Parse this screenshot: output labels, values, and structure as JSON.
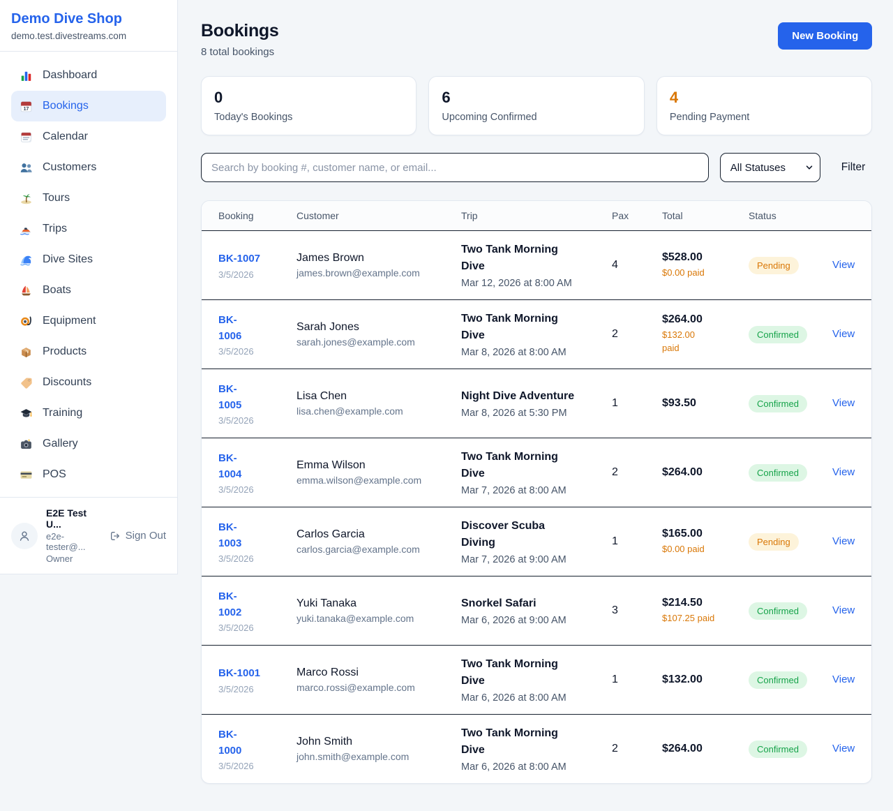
{
  "sidebar": {
    "brand": {
      "name": "Demo Dive Shop",
      "domain": "demo.test.divestreams.com"
    },
    "items": [
      {
        "label": "Dashboard",
        "icon": "dashboard",
        "active": false
      },
      {
        "label": "Bookings",
        "icon": "bookings",
        "active": true
      },
      {
        "label": "Calendar",
        "icon": "calendar",
        "active": false
      },
      {
        "label": "Customers",
        "icon": "customers",
        "active": false
      },
      {
        "label": "Tours",
        "icon": "tours",
        "active": false
      },
      {
        "label": "Trips",
        "icon": "trips",
        "active": false
      },
      {
        "label": "Dive Sites",
        "icon": "dive-sites",
        "active": false
      },
      {
        "label": "Boats",
        "icon": "boats",
        "active": false
      },
      {
        "label": "Equipment",
        "icon": "equipment",
        "active": false
      },
      {
        "label": "Products",
        "icon": "products",
        "active": false
      },
      {
        "label": "Discounts",
        "icon": "discounts",
        "active": false
      },
      {
        "label": "Training",
        "icon": "training",
        "active": false
      },
      {
        "label": "Gallery",
        "icon": "gallery",
        "active": false
      },
      {
        "label": "POS",
        "icon": "pos",
        "active": false
      }
    ],
    "user": {
      "name": "E2E Test U...",
      "email": "e2e-tester@...",
      "role": "Owner",
      "sign_out_label": "Sign Out"
    }
  },
  "header": {
    "title": "Bookings",
    "subtitle": "8 total bookings",
    "new_booking_label": "New Booking"
  },
  "stats": [
    {
      "value": "0",
      "label": "Today's Bookings",
      "color": "#0f172a"
    },
    {
      "value": "6",
      "label": "Upcoming Confirmed",
      "color": "#0f172a"
    },
    {
      "value": "4",
      "label": "Pending Payment",
      "color": "#d97706"
    }
  ],
  "filters": {
    "search_placeholder": "Search by booking #, customer name, or email...",
    "status_selected": "All Statuses",
    "filter_label": "Filter"
  },
  "table": {
    "columns": [
      "Booking",
      "Customer",
      "Trip",
      "Pax",
      "Total",
      "Status"
    ],
    "view_label": "View",
    "rows": [
      {
        "id": "BK-1007",
        "date": "3/5/2026",
        "customer": "James Brown",
        "email": "james.brown@example.com",
        "trip": "Two Tank Morning\nDive",
        "trip_time": "Mar 12, 2026 at 8:00 AM",
        "pax": "4",
        "total": "$528.00",
        "paid": "$0.00 paid",
        "status": "Pending"
      },
      {
        "id": "BK-\n1006",
        "date": "3/5/2026",
        "customer": "Sarah Jones",
        "email": "sarah.jones@example.com",
        "trip": "Two Tank Morning\nDive",
        "trip_time": "Mar 8, 2026 at 8:00 AM",
        "pax": "2",
        "total": "$264.00",
        "paid": "$132.00\npaid",
        "status": "Confirmed"
      },
      {
        "id": "BK-\n1005",
        "date": "3/5/2026",
        "customer": "Lisa Chen",
        "email": "lisa.chen@example.com",
        "trip": "Night Dive Adventure",
        "trip_time": "Mar 8, 2026 at 5:30 PM",
        "pax": "1",
        "total": "$93.50",
        "paid": null,
        "status": "Confirmed"
      },
      {
        "id": "BK-\n1004",
        "date": "3/5/2026",
        "customer": "Emma Wilson",
        "email": "emma.wilson@example.com",
        "trip": "Two Tank Morning\nDive",
        "trip_time": "Mar 7, 2026 at 8:00 AM",
        "pax": "2",
        "total": "$264.00",
        "paid": null,
        "status": "Confirmed"
      },
      {
        "id": "BK-\n1003",
        "date": "3/5/2026",
        "customer": "Carlos Garcia",
        "email": "carlos.garcia@example.com",
        "trip": "Discover Scuba\nDiving",
        "trip_time": "Mar 7, 2026 at 9:00 AM",
        "pax": "1",
        "total": "$165.00",
        "paid": "$0.00 paid",
        "status": "Pending"
      },
      {
        "id": "BK-\n1002",
        "date": "3/5/2026",
        "customer": "Yuki Tanaka",
        "email": "yuki.tanaka@example.com",
        "trip": "Snorkel Safari",
        "trip_time": "Mar 6, 2026 at 9:00 AM",
        "pax": "3",
        "total": "$214.50",
        "paid": "$107.25 paid",
        "status": "Confirmed"
      },
      {
        "id": "BK-1001",
        "date": "3/5/2026",
        "customer": "Marco Rossi",
        "email": "marco.rossi@example.com",
        "trip": "Two Tank Morning\nDive",
        "trip_time": "Mar 6, 2026 at 8:00 AM",
        "pax": "1",
        "total": "$132.00",
        "paid": null,
        "status": "Confirmed"
      },
      {
        "id": "BK-\n1000",
        "date": "3/5/2026",
        "customer": "John Smith",
        "email": "john.smith@example.com",
        "trip": "Two Tank Morning\nDive",
        "trip_time": "Mar 6, 2026 at 8:00 AM",
        "pax": "2",
        "total": "$264.00",
        "paid": null,
        "status": "Confirmed"
      }
    ]
  },
  "colors": {
    "accent": "#2563eb",
    "pending_text": "#d97706",
    "pending_bg": "#fdf3da",
    "confirmed_text": "#16a34a",
    "confirmed_bg": "#ddf6e4",
    "paid_orange": "#d97706"
  }
}
